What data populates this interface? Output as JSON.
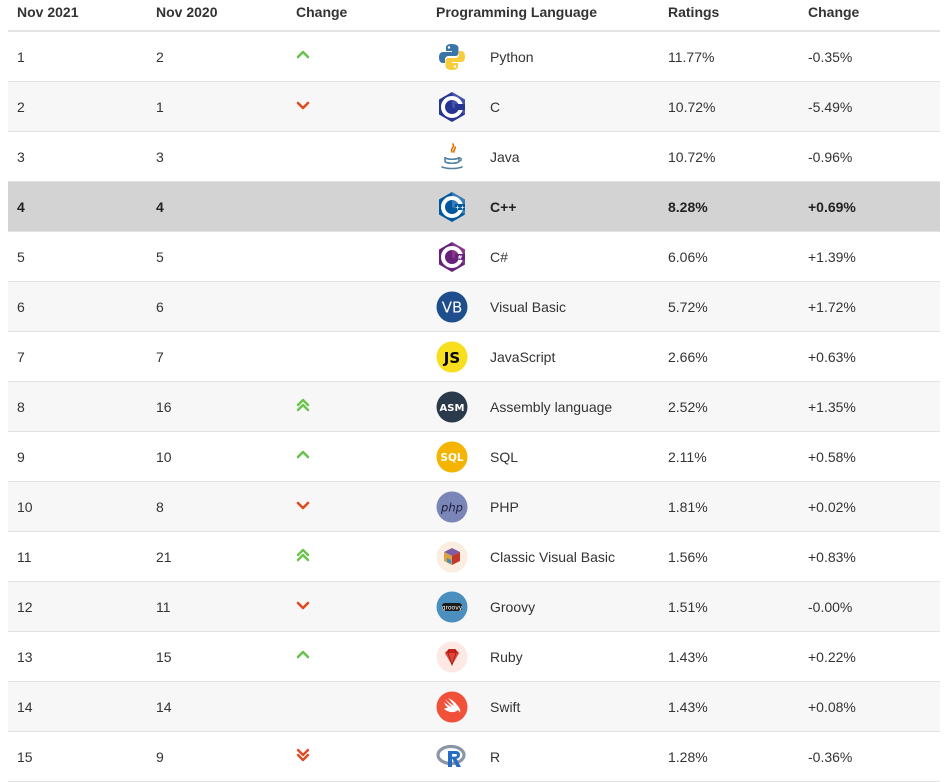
{
  "columns": [
    "Nov 2021",
    "Nov 2020",
    "Change",
    "Programming Language",
    "Ratings",
    "Change"
  ],
  "colors": {
    "up": "#6cc24a",
    "down": "#e04a1f",
    "highlight_row": "#d3d3d3"
  },
  "rows": [
    {
      "rank_2021": "1",
      "rank_2020": "2",
      "trend": "up",
      "trend_icon": "chevron-up-icon",
      "language": "Python",
      "logo_icon": "python-logo-icon",
      "rating": "11.77%",
      "change": "-0.35%"
    },
    {
      "rank_2021": "2",
      "rank_2020": "1",
      "trend": "down",
      "trend_icon": "chevron-down-icon",
      "language": "C",
      "logo_icon": "c-logo-icon",
      "rating": "10.72%",
      "change": "-5.49%"
    },
    {
      "rank_2021": "3",
      "rank_2020": "3",
      "trend": "none",
      "trend_icon": "",
      "language": "Java",
      "logo_icon": "java-logo-icon",
      "rating": "10.72%",
      "change": "-0.96%"
    },
    {
      "rank_2021": "4",
      "rank_2020": "4",
      "trend": "none",
      "trend_icon": "",
      "language": "C++",
      "logo_icon": "cpp-logo-icon",
      "rating": "8.28%",
      "change": "+0.69%",
      "highlighted": true
    },
    {
      "rank_2021": "5",
      "rank_2020": "5",
      "trend": "none",
      "trend_icon": "",
      "language": "C#",
      "logo_icon": "csharp-logo-icon",
      "rating": "6.06%",
      "change": "+1.39%"
    },
    {
      "rank_2021": "6",
      "rank_2020": "6",
      "trend": "none",
      "trend_icon": "",
      "language": "Visual Basic",
      "logo_icon": "visual-basic-logo-icon",
      "rating": "5.72%",
      "change": "+1.72%"
    },
    {
      "rank_2021": "7",
      "rank_2020": "7",
      "trend": "none",
      "trend_icon": "",
      "language": "JavaScript",
      "logo_icon": "javascript-logo-icon",
      "rating": "2.66%",
      "change": "+0.63%"
    },
    {
      "rank_2021": "8",
      "rank_2020": "16",
      "trend": "up2",
      "trend_icon": "double-chevron-up-icon",
      "language": "Assembly language",
      "logo_icon": "assembly-logo-icon",
      "rating": "2.52%",
      "change": "+1.35%"
    },
    {
      "rank_2021": "9",
      "rank_2020": "10",
      "trend": "up",
      "trend_icon": "chevron-up-icon",
      "language": "SQL",
      "logo_icon": "sql-logo-icon",
      "rating": "2.11%",
      "change": "+0.58%"
    },
    {
      "rank_2021": "10",
      "rank_2020": "8",
      "trend": "down",
      "trend_icon": "chevron-down-icon",
      "language": "PHP",
      "logo_icon": "php-logo-icon",
      "rating": "1.81%",
      "change": "+0.02%"
    },
    {
      "rank_2021": "11",
      "rank_2020": "21",
      "trend": "up2",
      "trend_icon": "double-chevron-up-icon",
      "language": "Classic Visual Basic",
      "logo_icon": "classic-visual-basic-logo-icon",
      "rating": "1.56%",
      "change": "+0.83%"
    },
    {
      "rank_2021": "12",
      "rank_2020": "11",
      "trend": "down",
      "trend_icon": "chevron-down-icon",
      "language": "Groovy",
      "logo_icon": "groovy-logo-icon",
      "rating": "1.51%",
      "change": "-0.00%"
    },
    {
      "rank_2021": "13",
      "rank_2020": "15",
      "trend": "up",
      "trend_icon": "chevron-up-icon",
      "language": "Ruby",
      "logo_icon": "ruby-logo-icon",
      "rating": "1.43%",
      "change": "+0.22%"
    },
    {
      "rank_2021": "14",
      "rank_2020": "14",
      "trend": "none",
      "trend_icon": "",
      "language": "Swift",
      "logo_icon": "swift-logo-icon",
      "rating": "1.43%",
      "change": "+0.08%"
    },
    {
      "rank_2021": "15",
      "rank_2020": "9",
      "trend": "down2",
      "trend_icon": "double-chevron-down-icon",
      "language": "R",
      "logo_icon": "r-logo-icon",
      "rating": "1.28%",
      "change": "-0.36%"
    }
  ]
}
